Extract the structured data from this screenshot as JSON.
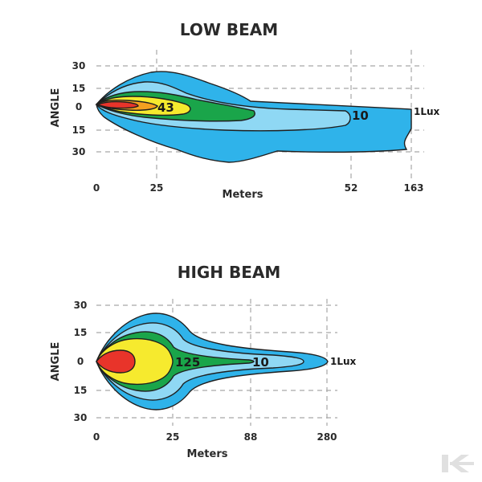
{
  "colors": {
    "lux_1": "#2fb3ea",
    "lux_10": "#8fd8f4",
    "lux_green": "#1aa54a",
    "lux_43_125": "#f6ea2e",
    "lux_orange": "#f4a020",
    "lux_red": "#e8342a"
  },
  "low_beam": {
    "title": "LOW BEAM",
    "y_axis_label": "ANGLE",
    "x_axis_label": "Meters",
    "y_ticks": [
      "30",
      "15",
      "0",
      "15",
      "30"
    ],
    "x_ticks": [
      "0",
      "25",
      "52",
      "163"
    ],
    "lux_labels": {
      "inner": "43",
      "mid": "10",
      "outer": "1Lux"
    }
  },
  "high_beam": {
    "title": "HIGH BEAM",
    "y_axis_label": "ANGLE",
    "x_axis_label": "Meters",
    "y_ticks": [
      "30",
      "15",
      "0",
      "15",
      "30"
    ],
    "x_ticks": [
      "0",
      "25",
      "88",
      "280"
    ],
    "lux_labels": {
      "inner": "125",
      "mid": "10",
      "outer": "1Lux"
    }
  },
  "watermark_icon": "k-logo-icon"
}
